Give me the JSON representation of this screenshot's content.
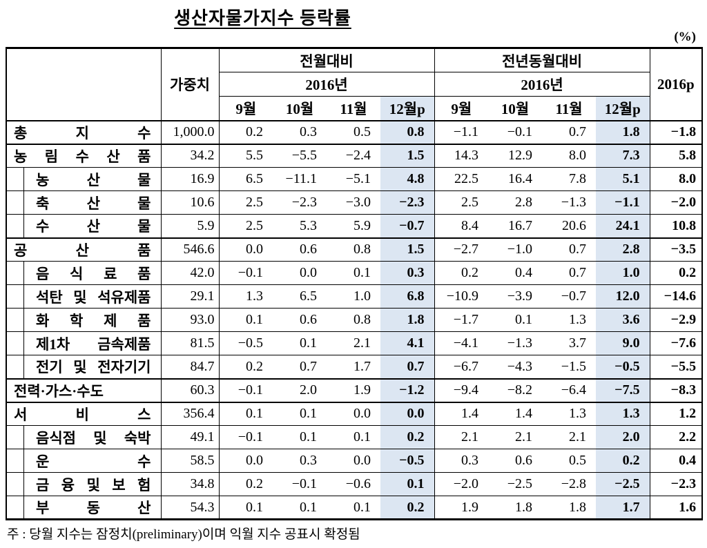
{
  "title": "생산자물가지수 등락률",
  "unit_label": "(%)",
  "note": "주 : 당월 지수는 잠정치(preliminary)이며 익월 지수 공표시 확정됨",
  "colors": {
    "highlight": "#dce6f2"
  },
  "table": {
    "weight_header": "가중치",
    "group_headers": {
      "mom": "전월대비",
      "yoy": "전년동월대비"
    },
    "year_header": "2016년",
    "final_header": "2016p",
    "month_headers": [
      "9월",
      "10월",
      "11월",
      "12월p"
    ],
    "rows": [
      {
        "label": "총 지 수",
        "level": 0,
        "weight": "1,000.0",
        "mom": [
          "0.2",
          "0.3",
          "0.5",
          "0.8"
        ],
        "yoy": [
          "−1.1",
          "−0.1",
          "0.7",
          "1.8"
        ],
        "y2016": "−1.8"
      },
      {
        "label": "농 림 수 산 품",
        "level": 0,
        "weight": "34.2",
        "mom": [
          "5.5",
          "−5.5",
          "−2.4",
          "1.5"
        ],
        "yoy": [
          "14.3",
          "12.9",
          "8.0",
          "7.3"
        ],
        "y2016": "5.8"
      },
      {
        "label": "농 산 물",
        "level": 1,
        "weight": "16.9",
        "mom": [
          "6.5",
          "−11.1",
          "−5.1",
          "4.8"
        ],
        "yoy": [
          "22.5",
          "16.4",
          "7.8",
          "5.1"
        ],
        "y2016": "8.0"
      },
      {
        "label": "축 산 물",
        "level": 1,
        "weight": "10.6",
        "mom": [
          "2.5",
          "−2.3",
          "−3.0",
          "−2.3"
        ],
        "yoy": [
          "2.5",
          "2.8",
          "−1.3",
          "−1.1"
        ],
        "y2016": "−2.0"
      },
      {
        "label": "수 산 물",
        "level": 1,
        "weight": "5.9",
        "mom": [
          "2.5",
          "5.3",
          "5.9",
          "−0.7"
        ],
        "yoy": [
          "8.4",
          "16.7",
          "20.6",
          "24.1"
        ],
        "y2016": "10.8"
      },
      {
        "label": "공 산 품",
        "level": 0,
        "weight": "546.6",
        "mom": [
          "0.0",
          "0.6",
          "0.8",
          "1.5"
        ],
        "yoy": [
          "−2.7",
          "−1.0",
          "0.7",
          "2.8"
        ],
        "y2016": "−3.5"
      },
      {
        "label": "음 식 료 품",
        "level": 1,
        "weight": "42.0",
        "mom": [
          "−0.1",
          "0.0",
          "0.1",
          "0.3"
        ],
        "yoy": [
          "0.2",
          "0.4",
          "0.7",
          "1.0"
        ],
        "y2016": "0.2"
      },
      {
        "label": "석탄 및 석유제품",
        "level": 1,
        "weight": "29.1",
        "mom": [
          "1.3",
          "6.5",
          "1.0",
          "6.8"
        ],
        "yoy": [
          "−10.9",
          "−3.9",
          "−0.7",
          "12.0"
        ],
        "y2016": "−14.6"
      },
      {
        "label": "화 학 제 품",
        "level": 1,
        "weight": "93.0",
        "mom": [
          "0.1",
          "0.6",
          "0.8",
          "1.8"
        ],
        "yoy": [
          "−1.7",
          "0.1",
          "1.3",
          "3.6"
        ],
        "y2016": "−2.9"
      },
      {
        "label": "제1차 금속제품",
        "level": 1,
        "weight": "81.5",
        "mom": [
          "−0.5",
          "0.1",
          "2.1",
          "4.1"
        ],
        "yoy": [
          "−4.1",
          "−1.3",
          "3.7",
          "9.0"
        ],
        "y2016": "−7.6"
      },
      {
        "label": "전기 및 전자기기",
        "level": 1,
        "weight": "84.7",
        "mom": [
          "0.2",
          "0.7",
          "1.7",
          "0.7"
        ],
        "yoy": [
          "−6.7",
          "−4.3",
          "−1.5",
          "−0.5"
        ],
        "y2016": "−5.5"
      },
      {
        "label": "전력·가스·수도",
        "level": 0,
        "weight": "60.3",
        "mom": [
          "−0.1",
          "2.0",
          "1.9",
          "−1.2"
        ],
        "yoy": [
          "−9.4",
          "−8.2",
          "−6.4",
          "−7.5"
        ],
        "y2016": "−8.3"
      },
      {
        "label": "서 비 스",
        "level": 0,
        "weight": "356.4",
        "mom": [
          "0.1",
          "0.1",
          "0.0",
          "0.0"
        ],
        "yoy": [
          "1.4",
          "1.4",
          "1.3",
          "1.3"
        ],
        "y2016": "1.2"
      },
      {
        "label": "음식점 및 숙박",
        "level": 1,
        "weight": "49.1",
        "mom": [
          "−0.1",
          "0.1",
          "0.1",
          "0.2"
        ],
        "yoy": [
          "2.1",
          "2.1",
          "2.1",
          "2.0"
        ],
        "y2016": "2.2"
      },
      {
        "label": "운 수",
        "level": 1,
        "weight": "58.5",
        "mom": [
          "0.0",
          "0.3",
          "0.0",
          "−0.5"
        ],
        "yoy": [
          "0.3",
          "0.6",
          "0.5",
          "0.2"
        ],
        "y2016": "0.4"
      },
      {
        "label": "금 융 및 보 험",
        "level": 1,
        "weight": "34.8",
        "mom": [
          "0.2",
          "−0.1",
          "−0.6",
          "0.1"
        ],
        "yoy": [
          "−2.0",
          "−2.5",
          "−2.8",
          "−2.5"
        ],
        "y2016": "−2.3"
      },
      {
        "label": "부 동 산",
        "level": 1,
        "weight": "54.3",
        "mom": [
          "0.1",
          "0.1",
          "0.1",
          "0.2"
        ],
        "yoy": [
          "1.9",
          "1.8",
          "1.8",
          "1.7"
        ],
        "y2016": "1.6"
      }
    ]
  }
}
